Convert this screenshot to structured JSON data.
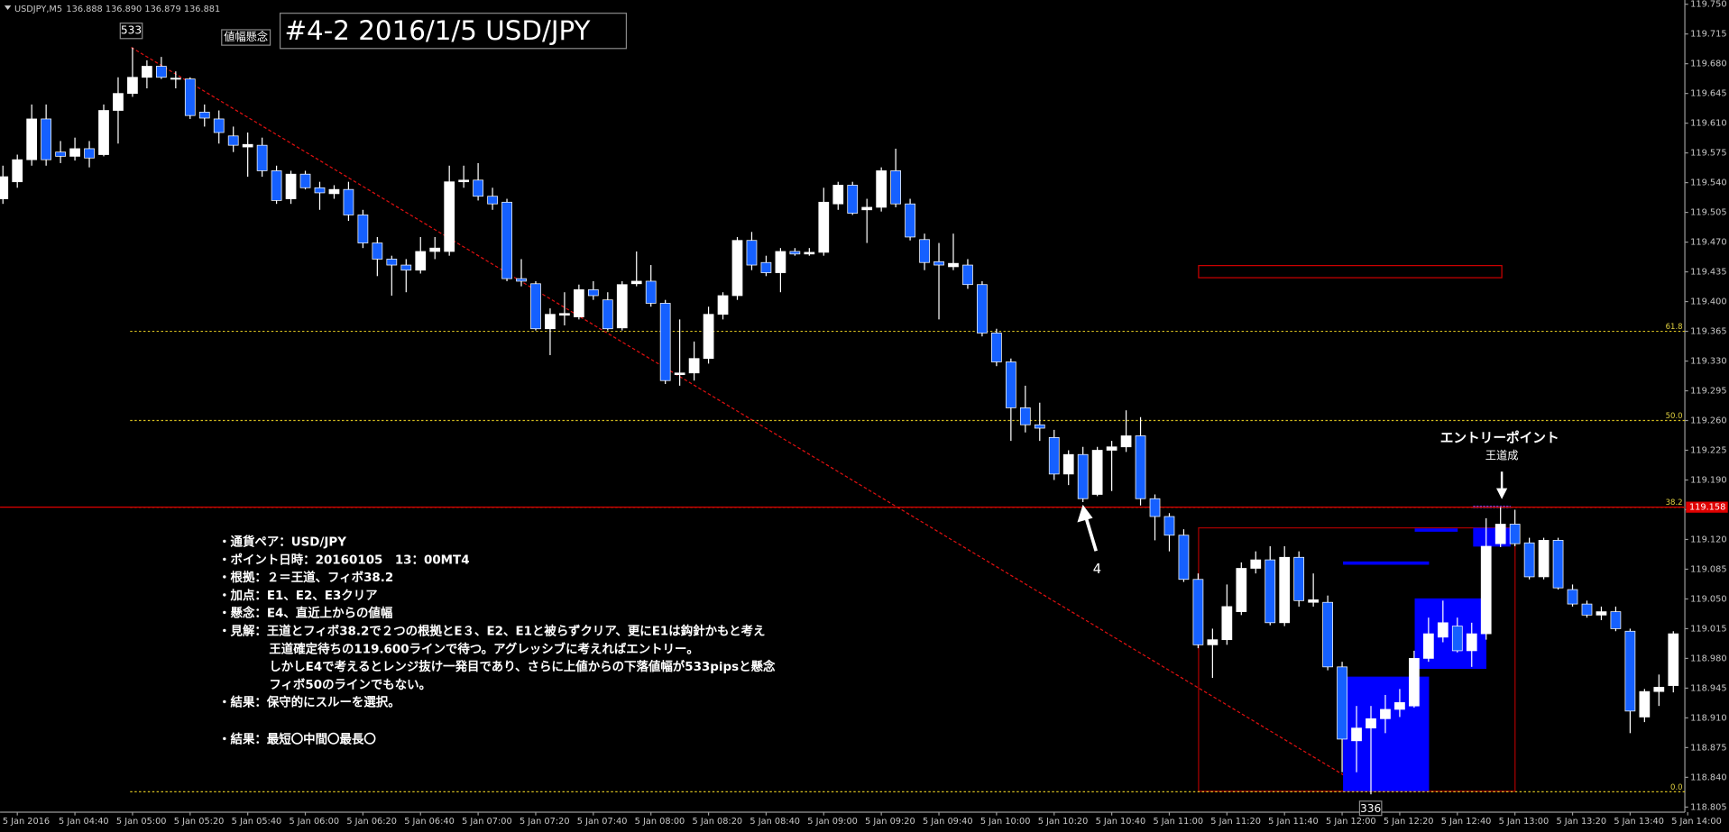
{
  "chart_data": {
    "type": "candlestick",
    "symbol": "USDJPY,M5",
    "quote": "136.888 136.890 136.879 136.881",
    "title": "#4-2 2016/1/5 USD/JPY",
    "up_color": "#ffffff",
    "down_color": "#1560ff",
    "x": [
      "5 Jan 04:15",
      "5 Jan 04:20",
      "5 Jan 04:25",
      "5 Jan 04:30",
      "5 Jan 04:35",
      "5 Jan 04:40",
      "5 Jan 04:45",
      "5 Jan 04:50",
      "5 Jan 04:55",
      "5 Jan 05:00",
      "5 Jan 05:05",
      "5 Jan 05:10",
      "5 Jan 05:15",
      "5 Jan 05:20",
      "5 Jan 05:25",
      "5 Jan 05:30",
      "5 Jan 05:35",
      "5 Jan 05:40",
      "5 Jan 05:45",
      "5 Jan 05:50",
      "5 Jan 05:55",
      "5 Jan 06:00",
      "5 Jan 06:05",
      "5 Jan 06:10",
      "5 Jan 06:15",
      "5 Jan 06:20",
      "5 Jan 06:25",
      "5 Jan 06:30",
      "5 Jan 06:35",
      "5 Jan 06:40",
      "5 Jan 06:45",
      "5 Jan 06:50",
      "5 Jan 06:55",
      "5 Jan 07:00",
      "5 Jan 07:05",
      "5 Jan 07:10",
      "5 Jan 07:15",
      "5 Jan 07:20",
      "5 Jan 07:25",
      "5 Jan 07:30",
      "5 Jan 07:35",
      "5 Jan 07:40",
      "5 Jan 07:45",
      "5 Jan 07:50",
      "5 Jan 07:55",
      "5 Jan 08:00",
      "5 Jan 08:05",
      "5 Jan 08:10",
      "5 Jan 08:15",
      "5 Jan 08:20",
      "5 Jan 08:25",
      "5 Jan 08:30",
      "5 Jan 08:35",
      "5 Jan 08:40",
      "5 Jan 08:45",
      "5 Jan 08:50",
      "5 Jan 08:55",
      "5 Jan 09:00",
      "5 Jan 09:05",
      "5 Jan 09:10",
      "5 Jan 09:15",
      "5 Jan 09:20",
      "5 Jan 09:25",
      "5 Jan 09:30",
      "5 Jan 09:35",
      "5 Jan 09:40",
      "5 Jan 09:45",
      "5 Jan 09:50",
      "5 Jan 09:55",
      "5 Jan 10:00",
      "5 Jan 10:05",
      "5 Jan 10:10",
      "5 Jan 10:15",
      "5 Jan 10:20",
      "5 Jan 10:25",
      "5 Jan 10:30",
      "5 Jan 10:35",
      "5 Jan 10:40",
      "5 Jan 10:45",
      "5 Jan 10:50",
      "5 Jan 10:55",
      "5 Jan 11:00",
      "5 Jan 11:05",
      "5 Jan 11:10",
      "5 Jan 11:15",
      "5 Jan 11:20",
      "5 Jan 11:25",
      "5 Jan 11:30",
      "5 Jan 11:35",
      "5 Jan 11:40",
      "5 Jan 11:45",
      "5 Jan 11:50",
      "5 Jan 11:55",
      "5 Jan 12:00",
      "5 Jan 12:05",
      "5 Jan 12:10",
      "5 Jan 12:15",
      "5 Jan 12:20",
      "5 Jan 12:25",
      "5 Jan 12:30",
      "5 Jan 12:35",
      "5 Jan 12:40",
      "5 Jan 12:45",
      "5 Jan 12:50",
      "5 Jan 12:55",
      "5 Jan 13:00",
      "5 Jan 13:05",
      "5 Jan 13:10",
      "5 Jan 13:15",
      "5 Jan 13:20",
      "5 Jan 13:25",
      "5 Jan 13:30",
      "5 Jan 13:35",
      "5 Jan 13:40",
      "5 Jan 13:45",
      "5 Jan 13:50",
      "5 Jan 13:55"
    ],
    "open": [
      119.521,
      119.541,
      119.567,
      119.615,
      119.576,
      119.571,
      119.58,
      119.573,
      119.625,
      119.645,
      119.664,
      119.677,
      119.662,
      119.662,
      119.623,
      119.615,
      119.595,
      119.582,
      119.584,
      119.554,
      119.521,
      119.55,
      119.534,
      119.527,
      119.532,
      119.502,
      119.469,
      119.45,
      119.443,
      119.437,
      119.459,
      119.459,
      119.541,
      119.543,
      119.524,
      119.517,
      119.427,
      119.421,
      119.368,
      119.384,
      119.382,
      119.414,
      119.402,
      119.369,
      119.421,
      119.424,
      119.398,
      119.314,
      119.316,
      119.333,
      119.385,
      119.407,
      119.472,
      119.446,
      119.434,
      119.459,
      119.456,
      119.458,
      119.515,
      119.537,
      119.508,
      119.511,
      119.554,
      119.515,
      119.473,
      119.447,
      119.441,
      119.443,
      119.42,
      119.363,
      119.329,
      119.275,
      119.255,
      119.24,
      119.197,
      119.22,
      119.173,
      119.225,
      119.229,
      119.242,
      119.168,
      119.147,
      119.125,
      119.073,
      118.996,
      119.002,
      119.035,
      119.086,
      119.096,
      119.022,
      119.099,
      119.046,
      119.046,
      118.97,
      118.883,
      118.898,
      118.909,
      118.92,
      118.924,
      118.98,
      119.005,
      119.018,
      118.989,
      119.009,
      119.115,
      119.138,
      119.116,
      119.076,
      119.119,
      119.061,
      119.044,
      119.031,
      119.035,
      119.012,
      118.911,
      118.941,
      118.948
    ],
    "high": [
      119.56,
      119.573,
      119.632,
      119.632,
      119.589,
      119.593,
      119.589,
      119.632,
      119.664,
      119.699,
      119.684,
      119.688,
      119.671,
      119.664,
      119.632,
      119.625,
      119.606,
      119.599,
      119.593,
      119.56,
      119.554,
      119.554,
      119.541,
      119.537,
      119.541,
      119.508,
      119.476,
      119.454,
      119.45,
      119.476,
      119.476,
      119.56,
      119.56,
      119.563,
      119.534,
      119.521,
      119.45,
      119.424,
      119.392,
      119.411,
      119.42,
      119.424,
      119.411,
      119.424,
      119.459,
      119.443,
      119.402,
      119.379,
      119.353,
      119.394,
      119.411,
      119.476,
      119.482,
      119.454,
      119.463,
      119.463,
      119.463,
      119.534,
      119.541,
      119.541,
      119.521,
      119.558,
      119.58,
      119.521,
      119.48,
      119.469,
      119.48,
      119.45,
      119.424,
      119.368,
      119.333,
      119.301,
      119.281,
      119.249,
      119.225,
      119.229,
      119.229,
      119.236,
      119.272,
      119.264,
      119.173,
      119.151,
      119.132,
      119.08,
      119.015,
      119.067,
      119.093,
      119.106,
      119.112,
      119.112,
      119.106,
      119.08,
      119.054,
      118.976,
      118.924,
      118.924,
      118.937,
      118.944,
      118.989,
      119.028,
      119.048,
      119.028,
      119.022,
      119.145,
      119.158,
      119.155,
      119.122,
      119.122,
      119.122,
      119.067,
      119.048,
      119.041,
      119.041,
      119.015,
      118.944,
      118.961,
      119.012
    ],
    "low": [
      119.515,
      119.534,
      119.56,
      119.56,
      119.563,
      119.566,
      119.558,
      119.571,
      119.586,
      119.641,
      119.651,
      119.662,
      119.651,
      119.615,
      119.606,
      119.586,
      119.576,
      119.547,
      119.547,
      119.515,
      119.515,
      119.532,
      119.508,
      119.521,
      119.495,
      119.463,
      119.43,
      119.407,
      119.411,
      119.433,
      119.45,
      119.454,
      119.534,
      119.519,
      119.508,
      119.424,
      119.418,
      119.366,
      119.337,
      119.372,
      119.379,
      119.402,
      119.366,
      119.366,
      119.418,
      119.394,
      119.303,
      119.301,
      119.307,
      119.327,
      119.379,
      119.402,
      119.437,
      119.43,
      119.411,
      119.454,
      119.454,
      119.454,
      119.508,
      119.502,
      119.469,
      119.506,
      119.511,
      119.472,
      119.437,
      119.379,
      119.437,
      119.415,
      119.359,
      119.324,
      119.236,
      119.246,
      119.236,
      119.19,
      119.184,
      119.164,
      119.171,
      119.177,
      119.223,
      119.16,
      119.119,
      119.106,
      119.07,
      118.992,
      118.957,
      118.996,
      119.031,
      119.08,
      119.019,
      119.018,
      119.041,
      119.041,
      118.966,
      118.846,
      118.846,
      118.82,
      118.892,
      118.911,
      118.922,
      118.976,
      118.999,
      118.987,
      118.97,
      119.002,
      119.111,
      119.112,
      119.073,
      119.073,
      119.061,
      119.041,
      119.028,
      119.025,
      119.012,
      118.892,
      118.905,
      118.924,
      118.94
    ],
    "close": [
      119.547,
      119.567,
      119.615,
      119.567,
      119.571,
      119.58,
      119.569,
      119.625,
      119.645,
      119.664,
      119.677,
      119.664,
      119.663,
      119.619,
      119.616,
      119.599,
      119.584,
      119.585,
      119.554,
      119.519,
      119.55,
      119.534,
      119.528,
      119.532,
      119.502,
      119.469,
      119.45,
      119.443,
      119.437,
      119.459,
      119.463,
      119.541,
      119.543,
      119.524,
      119.515,
      119.427,
      119.424,
      119.368,
      119.385,
      119.386,
      119.414,
      119.407,
      119.368,
      119.42,
      119.424,
      119.398,
      119.307,
      119.316,
      119.333,
      119.385,
      119.407,
      119.472,
      119.443,
      119.434,
      119.459,
      119.456,
      119.458,
      119.517,
      119.537,
      119.504,
      119.511,
      119.554,
      119.515,
      119.476,
      119.446,
      119.443,
      119.445,
      119.42,
      119.363,
      119.329,
      119.275,
      119.255,
      119.251,
      119.197,
      119.22,
      119.168,
      119.225,
      119.229,
      119.242,
      119.168,
      119.147,
      119.125,
      119.073,
      118.996,
      119.002,
      119.041,
      119.086,
      119.096,
      119.022,
      119.099,
      119.048,
      119.049,
      118.97,
      118.885,
      118.898,
      118.909,
      118.92,
      118.928,
      118.98,
      119.009,
      119.022,
      118.989,
      119.009,
      119.112,
      119.138,
      119.115,
      119.076,
      119.119,
      119.063,
      119.044,
      119.031,
      119.035,
      119.015,
      118.918,
      118.941,
      118.946,
      119.009
    ],
    "xlim": [
      "5 Jan 04:14",
      "5 Jan 13:59"
    ],
    "xticks": [
      {
        "value": "5 Jan 04:20",
        "label": "5 Jan 2016"
      },
      "5 Jan 04:40",
      "5 Jan 05:00",
      "5 Jan 05:20",
      "5 Jan 05:40",
      "5 Jan 06:00",
      "5 Jan 06:20",
      "5 Jan 06:40",
      "5 Jan 07:00",
      "5 Jan 07:20",
      "5 Jan 07:40",
      "5 Jan 08:00",
      "5 Jan 08:20",
      "5 Jan 08:40",
      "5 Jan 09:00",
      "5 Jan 09:20",
      "5 Jan 09:40",
      "5 Jan 10:00",
      "5 Jan 10:20",
      "5 Jan 10:40",
      "5 Jan 11:00",
      "5 Jan 11:20",
      "5 Jan 11:40",
      "5 Jan 12:00",
      "5 Jan 12:20",
      "5 Jan 12:40",
      "5 Jan 13:00",
      "5 Jan 13:20",
      "5 Jan 13:40",
      "5 Jan 14:00"
    ],
    "ylim": [
      118.799,
      119.755
    ],
    "yticks": [
      {
        "value": 119.75,
        "label": "119.750"
      },
      119.715,
      {
        "value": 119.68,
        "label": "119.680"
      },
      119.645,
      {
        "value": 119.61,
        "label": "119.610"
      },
      119.575,
      {
        "value": 119.54,
        "label": "119.540"
      },
      119.505,
      {
        "value": 119.47,
        "label": "119.470"
      },
      119.435,
      {
        "value": 119.4,
        "label": "119.400"
      },
      119.365,
      {
        "value": 119.33,
        "label": "119.330"
      },
      119.295,
      {
        "value": 119.26,
        "label": "119.260"
      },
      119.225,
      {
        "value": 119.19,
        "label": "119.190"
      },
      119.155,
      {
        "value": 119.12,
        "label": "119.120"
      },
      119.085,
      {
        "value": 119.05,
        "label": "119.050"
      },
      119.015,
      {
        "value": 118.98,
        "label": "118.980"
      },
      118.945,
      {
        "value": 118.91,
        "label": "118.910"
      },
      118.875,
      {
        "value": 118.84,
        "label": "118.840"
      },
      118.805
    ],
    "fibonacci": [
      {
        "label": "61.8",
        "value": 119.365
      },
      {
        "label": "50.0",
        "value": 119.26
      },
      {
        "label": "38.2",
        "value": 119.158
      },
      {
        "label": "0.0",
        "value": 118.823
      }
    ],
    "price_line": {
      "value": 119.158,
      "label": "119.158"
    },
    "annotations": {
      "marker_high": "533",
      "concern": "値幅懸念",
      "arrow_label": "4",
      "entry": "エントリーポイント",
      "entry_sub": "王道成",
      "marker_low": "336"
    },
    "notes": [
      "・通貨ペア：USD/JPY",
      "・ポイント日時：20160105　13：00MT4",
      "・根拠：２＝王道、フィボ38.2",
      "・加点：E1、E2、E3クリア",
      "・懸念：E4、直近上からの値幅",
      "・見解：王道とフィボ38.2で２つの根拠とE３、E2、E1と被らずクリア、更にE1は鈎針かもと考え",
      "王道確定待ちの119.600ラインで待つ。アグレッシブに考えればエントリー。",
      "しかしE4で考えるとレンジ抜け一発目であり、さらに上値からの下落値幅が533pipsと懸念",
      "フィボ50のラインでもない。",
      "・結果：保守的にスルーを選択。",
      "・結果：最短〇中間〇最長〇"
    ]
  }
}
